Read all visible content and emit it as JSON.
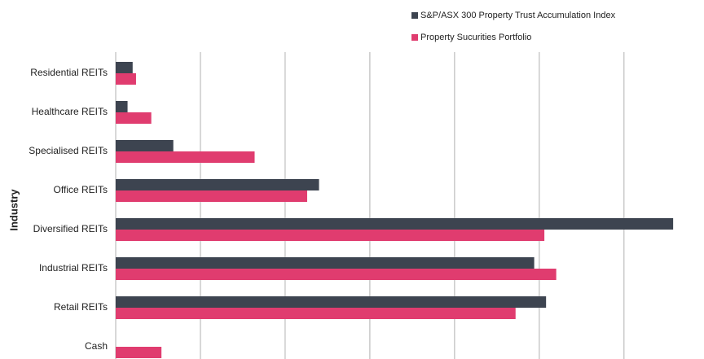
{
  "chart_data": {
    "type": "hbar",
    "y_label": "Industry",
    "categories": [
      "Residential REITs",
      "Healthcare REITs",
      "Specialised REITs",
      "Office REITs",
      "Diversified REITs",
      "Industrial REITs",
      "Retail REITs",
      "Cash"
    ],
    "series": [
      {
        "name": "S&P/ASX 300 Property Trust Accumulation Index",
        "color": "#3d4450",
        "values": [
          1.0,
          0.7,
          3.4,
          12.0,
          32.9,
          24.7,
          25.4,
          0
        ]
      },
      {
        "name": "Property Sucurities Portfolio",
        "color": "#e03c6f",
        "values": [
          1.2,
          2.1,
          8.2,
          11.3,
          25.3,
          26.0,
          23.6,
          2.7
        ]
      }
    ],
    "xlim": [
      0,
      34
    ],
    "xticks": [
      0,
      5,
      10,
      15,
      20,
      25,
      30
    ],
    "grid": true
  }
}
